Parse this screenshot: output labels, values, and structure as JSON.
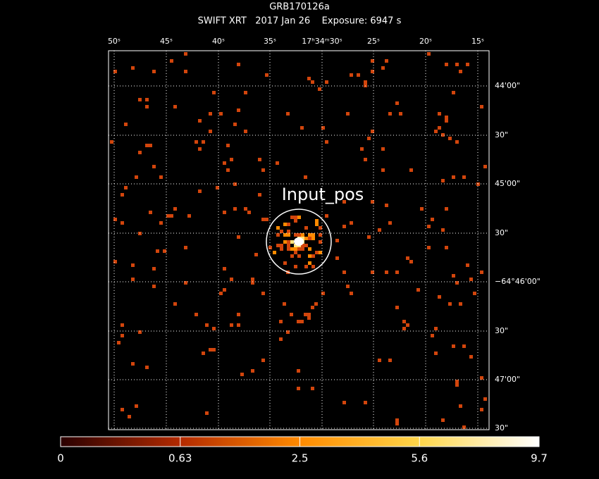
{
  "header": {
    "title": "GRB170126a",
    "subtitle": "SWIFT XRT   2017 Jan 26    Exposure: 6947 s"
  },
  "ra_labels": [
    "50ˢ",
    "45ˢ",
    "40ˢ",
    "35ˢ",
    "17ʰ34ᵐ30ˢ",
    "25ˢ",
    "20ˢ",
    "15ˢ"
  ],
  "dec_labels": [
    "44'00\"",
    "30\"",
    "45'00\"",
    "30\"",
    "−64°46'00\"",
    "30\"",
    "47'00\"",
    "30\""
  ],
  "annotation": "Input_pos",
  "colorbar_labels": [
    "0",
    "0.63",
    "2.5",
    "5.6",
    "9.7"
  ]
}
